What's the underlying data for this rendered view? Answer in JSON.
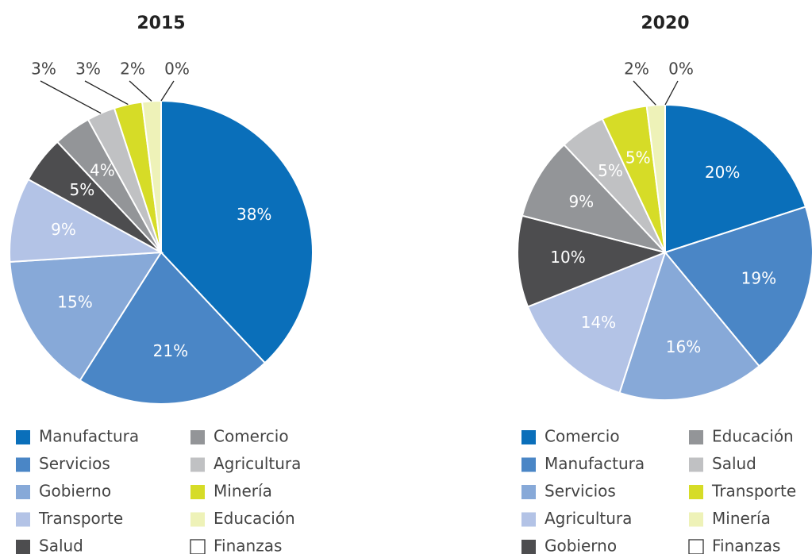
{
  "chart_data": [
    {
      "type": "pie",
      "title": "2015",
      "categories": [
        "Manufactura",
        "Servicios",
        "Gobierno",
        "Transporte",
        "Salud",
        "Comercio",
        "Agricultura",
        "Minería",
        "Educación",
        "Finanzas"
      ],
      "values": [
        38,
        21,
        15,
        9,
        5,
        4,
        3,
        3,
        2,
        0
      ],
      "value_labels": [
        "38%",
        "21%",
        "15%",
        "9%",
        "5%",
        "4%",
        "3%",
        "3%",
        "2%",
        "0%"
      ],
      "colors": [
        "#0a6fba",
        "#4a86c6",
        "#87a9d8",
        "#b3c3e6",
        "#4d4d4f",
        "#939598",
        "#c0c1c3",
        "#d6dc27",
        "#eef2b8",
        "#ffffff"
      ]
    },
    {
      "type": "pie",
      "title": "2020",
      "categories": [
        "Comercio",
        "Manufactura",
        "Servicios",
        "Agricultura",
        "Gobierno",
        "Educación",
        "Salud",
        "Transporte",
        "Minería",
        "Finanzas"
      ],
      "values": [
        20,
        19,
        16,
        14,
        10,
        9,
        5,
        5,
        2,
        0
      ],
      "value_labels": [
        "20%",
        "19%",
        "16%",
        "14%",
        "10%",
        "9%",
        "5%",
        "5%",
        "2%",
        "0%"
      ],
      "colors": [
        "#0a6fba",
        "#4a86c6",
        "#87a9d8",
        "#b3c3e6",
        "#4d4d4f",
        "#939598",
        "#c0c1c3",
        "#d6dc27",
        "#eef2b8",
        "#ffffff"
      ]
    }
  ]
}
